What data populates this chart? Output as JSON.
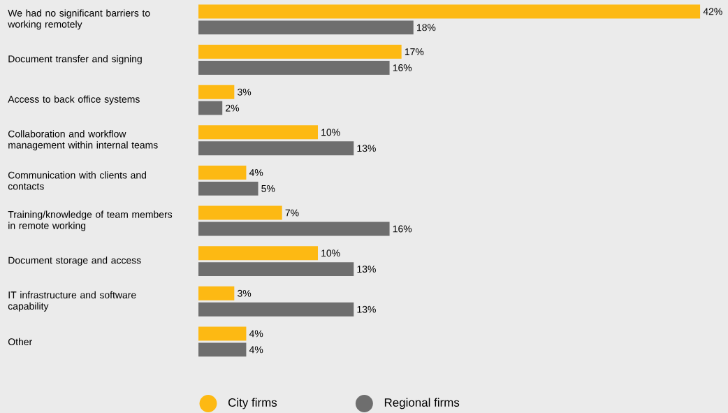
{
  "chart_data": {
    "type": "bar",
    "orientation": "horizontal",
    "legend": "bottom",
    "categories": [
      "We had no significant barriers to working remotely",
      "Document transfer and signing",
      "Access to back office systems",
      "Collaboration and workflow management within internal teams",
      "Communication with clients and contacts",
      "Training/knowledge of team members in remote working",
      "Document storage and access",
      "IT infrastructure and software capability",
      "Other"
    ],
    "series": [
      {
        "name": "City firms",
        "color": "#fdb913",
        "values": [
          42,
          17,
          3,
          10,
          4,
          7,
          10,
          3,
          4
        ],
        "value_labels": [
          "42%",
          "17%",
          "3%",
          "10%",
          "4%",
          "7%",
          "10%",
          "3%",
          "4%"
        ]
      },
      {
        "name": "Regional firms",
        "color": "#6e6e6e",
        "values": [
          18,
          16,
          2,
          13,
          5,
          16,
          13,
          13,
          4
        ],
        "value_labels": [
          "18%",
          "16%",
          "2%",
          "13%",
          "5%",
          "16%",
          "13%",
          "13%",
          "4%"
        ]
      }
    ]
  }
}
